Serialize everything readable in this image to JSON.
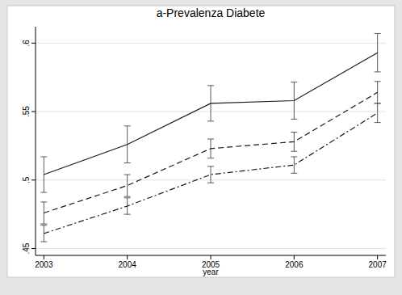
{
  "chart_data": {
    "type": "line",
    "title": "a-Prevalenza Diabete",
    "x_label": "year",
    "x": [
      2003,
      2004,
      2005,
      2006,
      2007
    ],
    "xlim": [
      2002.9,
      2007.1
    ],
    "xticks": [
      2003,
      2004,
      2005,
      2006,
      2007
    ],
    "ylim": [
      0.445,
      0.612
    ],
    "yticks": [
      {
        "value": 0.45,
        "label": ".45"
      },
      {
        "value": 0.5,
        "label": ".5"
      },
      {
        "value": 0.55,
        "label": ".55"
      },
      {
        "value": 0.6,
        "label": ".6"
      }
    ],
    "grid": true,
    "series": [
      {
        "color": "#1a1a1a",
        "line_style": "solid",
        "values": [
          0.504,
          0.526,
          0.556,
          0.558,
          0.593
        ],
        "errors": [
          0.013,
          0.0135,
          0.013,
          0.0135,
          0.014
        ]
      },
      {
        "color": "#1a1a1a",
        "line_style": "dashed",
        "values": [
          0.476,
          0.496,
          0.523,
          0.528,
          0.564
        ],
        "errors": [
          0.008,
          0.008,
          0.007,
          0.007,
          0.008
        ]
      },
      {
        "color": "#1a1a1a",
        "line_style": "dashdot",
        "values": [
          0.461,
          0.481,
          0.504,
          0.511,
          0.549
        ],
        "errors": [
          0.006,
          0.006,
          0.006,
          0.006,
          0.007
        ]
      }
    ]
  }
}
